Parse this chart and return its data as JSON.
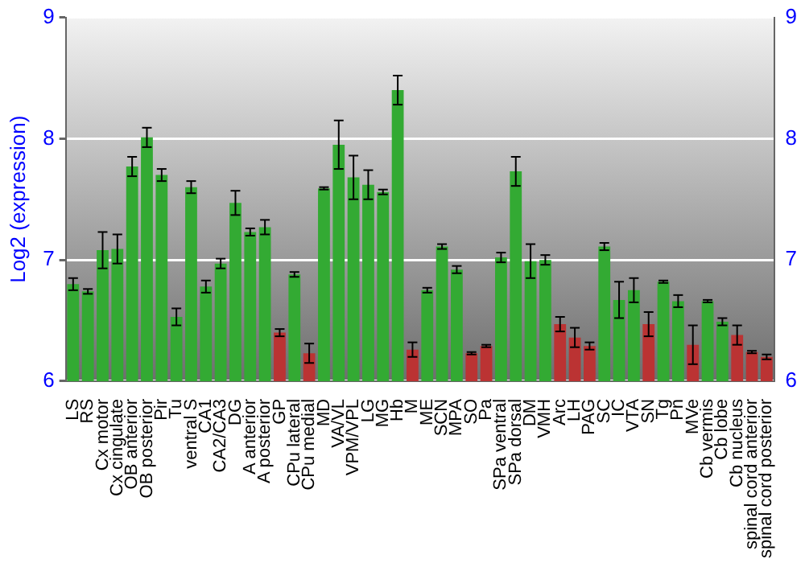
{
  "chart_data": {
    "type": "bar",
    "ylabel": "Log2 (expression)",
    "categories": [
      "LS",
      "RS",
      "Cx motor",
      "Cx cingulate",
      "OB anterior",
      "OB posterior",
      "Pir",
      "Tu",
      "ventral S",
      "CA1",
      "CA2/CA3",
      "DG",
      "A anterior",
      "A posterior",
      "GP",
      "CPu lateral",
      "CPu medial",
      "MD",
      "VA/VL",
      "VPM/VPL",
      "LG",
      "MG",
      "Hb",
      "M",
      "ME",
      "SCN",
      "MPA",
      "SO",
      "Pa",
      "SPa ventral",
      "SPa dorsal",
      "DM",
      "VMH",
      "Arc",
      "LH",
      "PAG",
      "SC",
      "IC",
      "VTA",
      "SN",
      "Tg",
      "Pn",
      "MVe",
      "Cb vermis",
      "Cb lobe",
      "Cb nucleus",
      "spinal cord anterior",
      "spinal cord posterior"
    ],
    "values": [
      6.8,
      6.74,
      7.08,
      7.09,
      7.77,
      8.01,
      7.7,
      6.53,
      7.6,
      6.78,
      6.97,
      7.47,
      7.23,
      7.27,
      6.4,
      6.88,
      6.23,
      7.59,
      7.95,
      7.68,
      7.62,
      7.56,
      8.4,
      6.26,
      6.75,
      7.11,
      6.92,
      6.23,
      6.29,
      7.02,
      7.73,
      6.99,
      7.0,
      6.47,
      6.36,
      6.29,
      7.11,
      6.67,
      6.75,
      6.47,
      6.82,
      6.66,
      6.3,
      6.66,
      6.49,
      6.38,
      6.24,
      6.2
    ],
    "errors": [
      0.05,
      0.02,
      0.15,
      0.12,
      0.08,
      0.08,
      0.05,
      0.07,
      0.05,
      0.05,
      0.04,
      0.1,
      0.03,
      0.06,
      0.03,
      0.02,
      0.08,
      0.01,
      0.2,
      0.18,
      0.12,
      0.02,
      0.12,
      0.06,
      0.02,
      0.02,
      0.03,
      0.01,
      0.01,
      0.04,
      0.12,
      0.14,
      0.04,
      0.06,
      0.08,
      0.03,
      0.03,
      0.15,
      0.1,
      0.1,
      0.01,
      0.05,
      0.16,
      0.01,
      0.03,
      0.08,
      0.01,
      0.02
    ],
    "colors": [
      "#33aa33",
      "#33aa33",
      "#33aa33",
      "#33aa33",
      "#33aa33",
      "#33aa33",
      "#33aa33",
      "#33aa33",
      "#33aa33",
      "#33aa33",
      "#33aa33",
      "#33aa33",
      "#33aa33",
      "#33aa33",
      "#bb3333",
      "#33aa33",
      "#bb3333",
      "#33aa33",
      "#33aa33",
      "#33aa33",
      "#33aa33",
      "#33aa33",
      "#33aa33",
      "#bb3333",
      "#33aa33",
      "#33aa33",
      "#33aa33",
      "#bb3333",
      "#bb3333",
      "#33aa33",
      "#33aa33",
      "#33aa33",
      "#33aa33",
      "#bb3333",
      "#bb3333",
      "#bb3333",
      "#33aa33",
      "#33aa33",
      "#33aa33",
      "#bb3333",
      "#33aa33",
      "#33aa33",
      "#bb3333",
      "#33aa33",
      "#33aa33",
      "#bb3333",
      "#bb3333",
      "#bb3333"
    ],
    "ylim": [
      6,
      9
    ],
    "yticks": [
      6,
      7,
      8,
      9
    ],
    "y2lim": [
      6,
      9
    ],
    "y2ticks": [
      6,
      7,
      8,
      9
    ],
    "grid": "y",
    "legend": false
  }
}
